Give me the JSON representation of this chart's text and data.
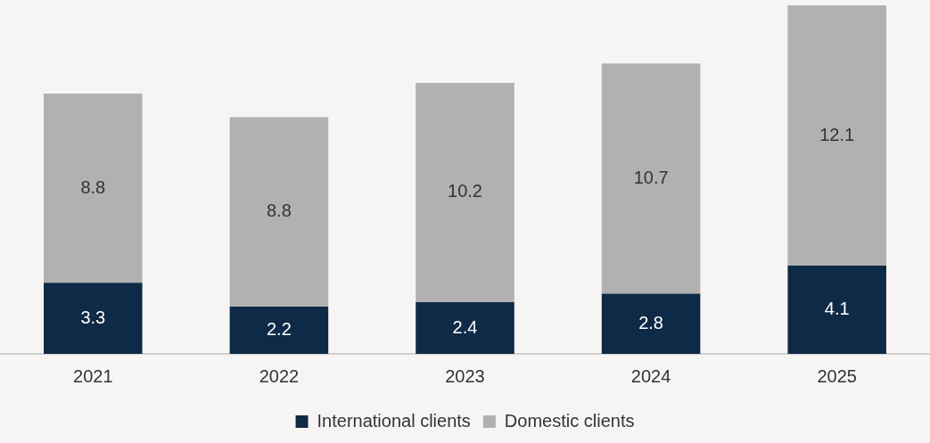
{
  "chart_data": {
    "type": "bar",
    "stacked": true,
    "categories": [
      "2021",
      "2022",
      "2023",
      "2024",
      "2025"
    ],
    "series": [
      {
        "name": "International clients",
        "color": "#0f2a46",
        "values": [
          3.3,
          2.2,
          2.4,
          2.8,
          4.1
        ]
      },
      {
        "name": "Domestic clients",
        "color": "#b1b1b1",
        "values": [
          8.8,
          8.8,
          10.2,
          10.7,
          12.1
        ]
      }
    ],
    "data_labels": true,
    "legend": "bottom"
  }
}
